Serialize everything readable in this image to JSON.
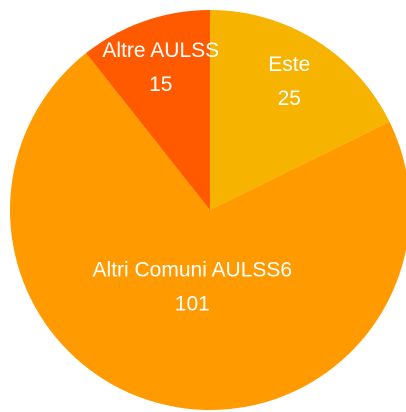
{
  "chart_data": {
    "type": "pie",
    "categories": [
      "Este",
      "Altri Comuni AULSS6",
      "Altre AULSS"
    ],
    "values": [
      25,
      101,
      15
    ],
    "colors": [
      "#f6b300",
      "#ff9a00",
      "#ff5a00"
    ]
  }
}
